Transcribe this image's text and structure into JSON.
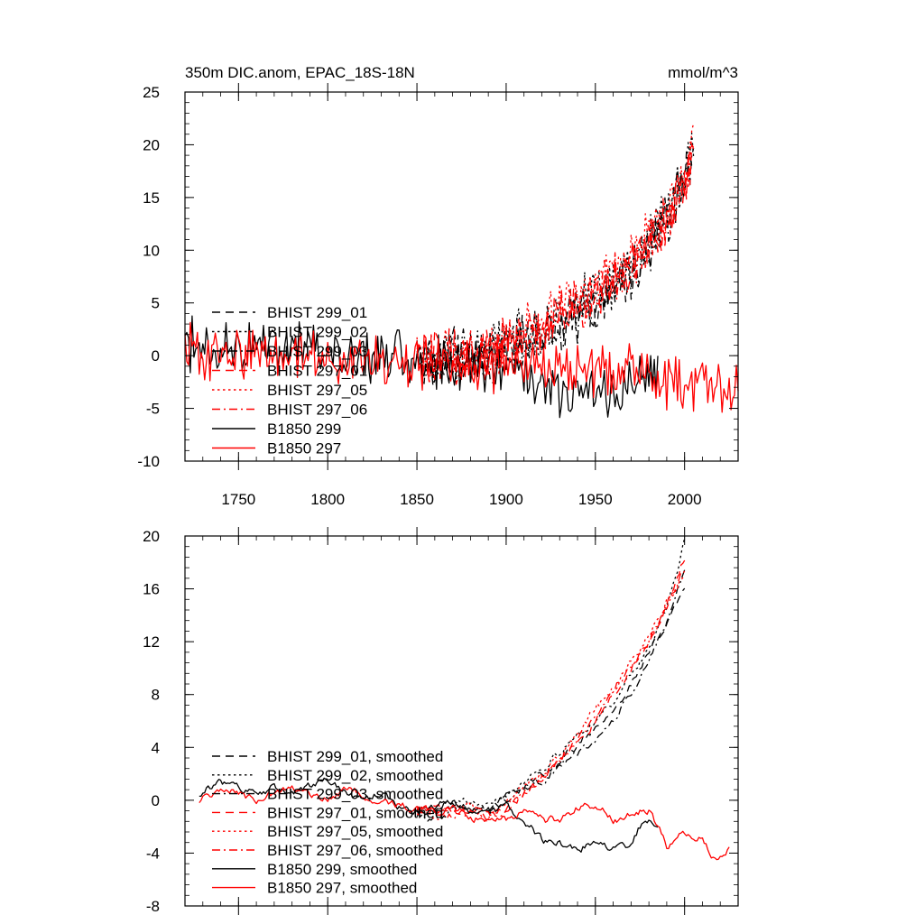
{
  "chart_data": [
    {
      "type": "line",
      "title": "350m DIC.anom, EPAC_18S-18N",
      "units": "mmol/m^3",
      "xlim": [
        1720,
        2030
      ],
      "ylim": [
        -10,
        25
      ],
      "xticks": [
        1750,
        1800,
        1850,
        1900,
        1950,
        2000
      ],
      "yticks": [
        -10,
        -5,
        0,
        5,
        10,
        15,
        20,
        25
      ],
      "xtick_labels": [
        "1750",
        "1800",
        "1850",
        "1900",
        "1950",
        "2000"
      ],
      "ytick_labels": [
        "-10",
        "-5",
        "0",
        "5",
        "10",
        "15",
        "20",
        "25"
      ],
      "legend_position": "left",
      "series": [
        {
          "name": "BHIST 299_01",
          "color": "#000000",
          "dash": "dash",
          "x": [
            1850,
            1860,
            1870,
            1880,
            1890,
            1900,
            1910,
            1920,
            1930,
            1940,
            1950,
            1960,
            1970,
            1980,
            1990,
            2000,
            2005
          ],
          "values": [
            0,
            -0.5,
            0.5,
            -0.3,
            0.2,
            1,
            1.5,
            2.5,
            3,
            4,
            5,
            7,
            8,
            10.5,
            13,
            17,
            19
          ]
        },
        {
          "name": "BHIST 299_02",
          "color": "#000000",
          "dash": "dot",
          "x": [
            1850,
            1860,
            1870,
            1880,
            1890,
            1900,
            1910,
            1920,
            1930,
            1940,
            1950,
            1960,
            1970,
            1980,
            1990,
            2000,
            2005
          ],
          "values": [
            0.5,
            0,
            -0.5,
            0.3,
            0.5,
            1.2,
            2,
            2,
            3.5,
            4.5,
            6,
            7,
            9,
            11,
            13.5,
            17.5,
            20.5
          ]
        },
        {
          "name": "BHIST 299_03",
          "color": "#000000",
          "dash": "dashdot",
          "x": [
            1850,
            1860,
            1870,
            1880,
            1890,
            1900,
            1910,
            1920,
            1930,
            1940,
            1950,
            1960,
            1970,
            1980,
            1990,
            2000,
            2005
          ],
          "values": [
            0,
            -1,
            0.3,
            0,
            -0.5,
            0.5,
            1,
            2,
            2.5,
            3.5,
            4.5,
            6,
            8,
            10,
            12.5,
            16,
            18
          ]
        },
        {
          "name": "BHIST 297_01",
          "color": "#ff0000",
          "dash": "dash",
          "x": [
            1850,
            1860,
            1870,
            1880,
            1890,
            1900,
            1910,
            1920,
            1930,
            1940,
            1950,
            1960,
            1970,
            1980,
            1990,
            2000,
            2005
          ],
          "values": [
            0,
            0.5,
            0,
            -0.5,
            0.5,
            1.5,
            2,
            3,
            4,
            5,
            6,
            7.5,
            9,
            11,
            13,
            16.5,
            19
          ]
        },
        {
          "name": "BHIST 297_05",
          "color": "#ff0000",
          "dash": "dot",
          "x": [
            1850,
            1860,
            1870,
            1880,
            1890,
            1900,
            1910,
            1920,
            1930,
            1940,
            1950,
            1960,
            1970,
            1980,
            1990,
            2000,
            2005
          ],
          "values": [
            0.5,
            -0.5,
            0.5,
            0.3,
            0,
            1,
            2.5,
            3,
            4.5,
            5.5,
            6.5,
            8,
            9.5,
            11.5,
            13.5,
            17,
            20.5
          ]
        },
        {
          "name": "BHIST 297_06",
          "color": "#ff0000",
          "dash": "dashdot",
          "x": [
            1850,
            1860,
            1870,
            1880,
            1890,
            1900,
            1910,
            1920,
            1930,
            1940,
            1950,
            1960,
            1970,
            1980,
            1990,
            2000,
            2005
          ],
          "values": [
            0,
            0,
            -0.5,
            0.5,
            0.5,
            1,
            1.5,
            2.5,
            3.5,
            4.5,
            5.5,
            7,
            8.5,
            10.5,
            12.5,
            16,
            19
          ]
        },
        {
          "name": "B1850 299",
          "color": "#000000",
          "dash": "solid",
          "x": [
            1720,
            1740,
            1760,
            1780,
            1800,
            1820,
            1840,
            1860,
            1880,
            1900,
            1920,
            1930,
            1940,
            1950,
            1960,
            1970,
            1980,
            1985
          ],
          "values": [
            1,
            1.5,
            0.5,
            1,
            0.5,
            0,
            0,
            -0.5,
            -1,
            -1.5,
            -3,
            -4,
            -3.5,
            -3.5,
            -3.5,
            -3,
            -2,
            -1
          ]
        },
        {
          "name": "B1850 297",
          "color": "#ff0000",
          "dash": "solid",
          "x": [
            1720,
            1740,
            1760,
            1780,
            1800,
            1820,
            1840,
            1860,
            1880,
            1900,
            1920,
            1940,
            1960,
            1970,
            1980,
            1990,
            2000,
            2010,
            2020,
            2030
          ],
          "values": [
            0.5,
            0,
            0.5,
            0.3,
            0,
            -0.5,
            -1,
            -0.5,
            -1,
            -1,
            -1,
            -1.5,
            -1.5,
            -1,
            -1.5,
            -3,
            -2.5,
            -2.5,
            -3.5,
            -2
          ]
        }
      ]
    },
    {
      "type": "line",
      "xlim": [
        1720,
        2030
      ],
      "ylim": [
        -8,
        20
      ],
      "xticks": [
        1750,
        1800,
        1850,
        1900,
        1950,
        2000
      ],
      "yticks": [
        -8,
        -4,
        0,
        4,
        8,
        12,
        16,
        20
      ],
      "ytick_labels": [
        "-8",
        "-4",
        "0",
        "4",
        "8",
        "12",
        "16",
        "20"
      ],
      "legend_position": "left",
      "series": [
        {
          "name": "BHIST 299_01, smoothed",
          "color": "#000000",
          "dash": "dash",
          "x": [
            1850,
            1860,
            1870,
            1880,
            1890,
            1900,
            1910,
            1920,
            1930,
            1940,
            1950,
            1960,
            1970,
            1980,
            1990,
            2000
          ],
          "values": [
            -0.5,
            -0.8,
            0,
            -0.5,
            -0.5,
            0.3,
            1,
            2,
            3,
            4.2,
            5.5,
            7,
            8.8,
            11,
            13.5,
            16.2
          ]
        },
        {
          "name": "BHIST 299_02, smoothed",
          "color": "#000000",
          "dash": "dot",
          "x": [
            1850,
            1860,
            1870,
            1880,
            1890,
            1900,
            1910,
            1920,
            1930,
            1940,
            1950,
            1960,
            1970,
            1980,
            1990,
            2000
          ],
          "values": [
            -0.5,
            -1,
            -0.5,
            0,
            0,
            0.5,
            1.5,
            2.5,
            3.5,
            5,
            6,
            7.5,
            9.5,
            11.5,
            14.5,
            19.5
          ]
        },
        {
          "name": "BHIST 299_03, smoothed",
          "color": "#000000",
          "dash": "dashdot",
          "x": [
            1850,
            1860,
            1870,
            1880,
            1890,
            1900,
            1910,
            1920,
            1930,
            1940,
            1950,
            1960,
            1970,
            1980,
            1990,
            2000
          ],
          "values": [
            -1,
            -1.5,
            -0.5,
            -0.8,
            -1,
            0,
            0.8,
            1.5,
            2.5,
            3.5,
            4.5,
            6,
            8,
            10.5,
            13.5,
            17.5
          ]
        },
        {
          "name": "BHIST 297_01, smoothed",
          "color": "#ff0000",
          "dash": "dash",
          "x": [
            1850,
            1860,
            1870,
            1880,
            1890,
            1900,
            1910,
            1920,
            1930,
            1940,
            1950,
            1960,
            1970,
            1980,
            1990,
            2000
          ],
          "values": [
            -0.8,
            -0.5,
            -1,
            -0.5,
            -1,
            -0.5,
            0.5,
            1.8,
            3,
            4.5,
            6,
            8,
            10,
            12,
            14.5,
            18.5
          ]
        },
        {
          "name": "BHIST 297_05, smoothed",
          "color": "#ff0000",
          "dash": "dot",
          "x": [
            1850,
            1860,
            1870,
            1880,
            1890,
            1900,
            1910,
            1920,
            1930,
            1940,
            1950,
            1960,
            1970,
            1980,
            1990,
            2000
          ],
          "values": [
            -0.5,
            -1,
            -0.8,
            -0.5,
            -1.5,
            0,
            1,
            2,
            3.5,
            5,
            7,
            8.5,
            10.5,
            12.5,
            15,
            17
          ]
        },
        {
          "name": "BHIST 297_06, smoothed",
          "color": "#ff0000",
          "dash": "dashdot",
          "x": [
            1850,
            1860,
            1870,
            1880,
            1890,
            1900,
            1910,
            1920,
            1930,
            1940,
            1950,
            1960,
            1970,
            1980,
            1990,
            2000
          ],
          "values": [
            -0.5,
            -0.8,
            -1,
            -1.2,
            -1.5,
            -0.5,
            0.5,
            1.5,
            3,
            4.5,
            6.5,
            8.5,
            10,
            12,
            14.5,
            17.5
          ]
        },
        {
          "name": "B1850 299, smoothed",
          "color": "#000000",
          "dash": "solid",
          "x": [
            1728,
            1740,
            1750,
            1760,
            1770,
            1780,
            1790,
            1800,
            1810,
            1820,
            1830,
            1840,
            1850,
            1860,
            1870,
            1880,
            1890,
            1900,
            1910,
            1920,
            1930,
            1940,
            1950,
            1960,
            1970,
            1975,
            1980,
            1985
          ],
          "values": [
            0.5,
            1.5,
            0.8,
            0.5,
            1,
            0.5,
            1,
            1.5,
            0.5,
            0,
            0.5,
            -0.5,
            -1,
            -0.5,
            0,
            -1,
            -0.8,
            -0.5,
            -1.5,
            -3,
            -3.3,
            -3.6,
            -3.4,
            -3.6,
            -3.4,
            -2,
            -1.5,
            -1.8
          ]
        },
        {
          "name": "B1850 297, smoothed",
          "color": "#ff0000",
          "dash": "solid",
          "x": [
            1728,
            1740,
            1750,
            1760,
            1770,
            1780,
            1790,
            1800,
            1810,
            1820,
            1830,
            1840,
            1850,
            1860,
            1870,
            1880,
            1890,
            1900,
            1910,
            1920,
            1930,
            1940,
            1950,
            1960,
            1970,
            1980,
            1990,
            2000,
            2010,
            2018,
            2025
          ],
          "values": [
            0,
            1,
            0.5,
            0,
            0.5,
            1,
            0.5,
            0,
            0.8,
            0.5,
            0,
            -0.5,
            -0.5,
            -1,
            -0.5,
            -1.3,
            -1.5,
            -1.5,
            -1,
            -1.5,
            -1.5,
            -0.5,
            -0.3,
            -1.5,
            -1,
            -0.8,
            -3.5,
            -2.5,
            -3,
            -4.5,
            -3.5
          ]
        }
      ]
    }
  ]
}
